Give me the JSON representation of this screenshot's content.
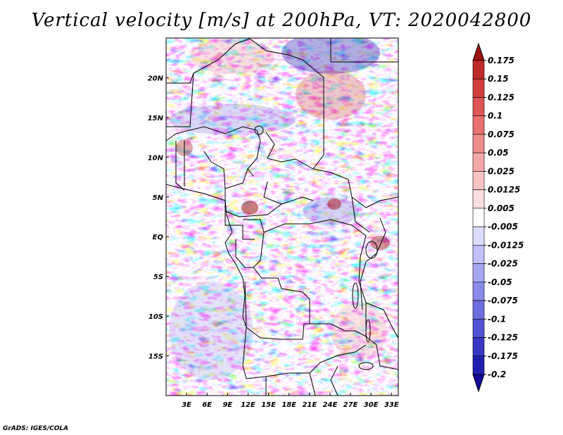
{
  "title": "Vertical velocity [m/s] at 200hPa, VT: 2020042800",
  "credit": "GrADS: IGES/COLA",
  "map": {
    "lon_range": [
      0,
      34
    ],
    "lat_range": [
      -20,
      25
    ],
    "x_tick_labels": [
      {
        "lon": 3,
        "label": "3E"
      },
      {
        "lon": 6,
        "label": "6E"
      },
      {
        "lon": 9,
        "label": "9E"
      },
      {
        "lon": 12,
        "label": "12E"
      },
      {
        "lon": 15,
        "label": "15E"
      },
      {
        "lon": 18,
        "label": "18E"
      },
      {
        "lon": 21,
        "label": "21E"
      },
      {
        "lon": 24,
        "label": "24E"
      },
      {
        "lon": 27,
        "label": "27E"
      },
      {
        "lon": 30,
        "label": "30E"
      },
      {
        "lon": 33,
        "label": "33E"
      }
    ],
    "y_tick_labels": [
      {
        "lat": 20,
        "label": "20N"
      },
      {
        "lat": 15,
        "label": "15N"
      },
      {
        "lat": 10,
        "label": "10N"
      },
      {
        "lat": 5,
        "label": "5N"
      },
      {
        "lat": 0,
        "label": "EQ"
      },
      {
        "lat": -5,
        "label": "5S"
      },
      {
        "lat": -10,
        "label": "10S"
      },
      {
        "lat": -15,
        "label": "15S"
      }
    ]
  },
  "colorbar": {
    "labels": [
      "0.175",
      "0.15",
      "0.125",
      "0.1",
      "0.075",
      "0.05",
      "0.025",
      "0.0125",
      "0.005",
      "-0.005",
      "-0.0125",
      "-0.025",
      "-0.05",
      "-0.075",
      "-0.1",
      "-0.125",
      "-0.175",
      "-0.2"
    ],
    "colors": [
      "#a11414",
      "#c02a2a",
      "#d23d3d",
      "#de5656",
      "#e87070",
      "#ee8b8b",
      "#f4a7a7",
      "#f8c3c3",
      "#fcdede",
      "#ffffff",
      "#dcdcff",
      "#c0c0fa",
      "#a5a5f2",
      "#8a8aea",
      "#6e6ee0",
      "#5252d4",
      "#3838c4",
      "#2020b0",
      "#140a9a"
    ]
  }
}
